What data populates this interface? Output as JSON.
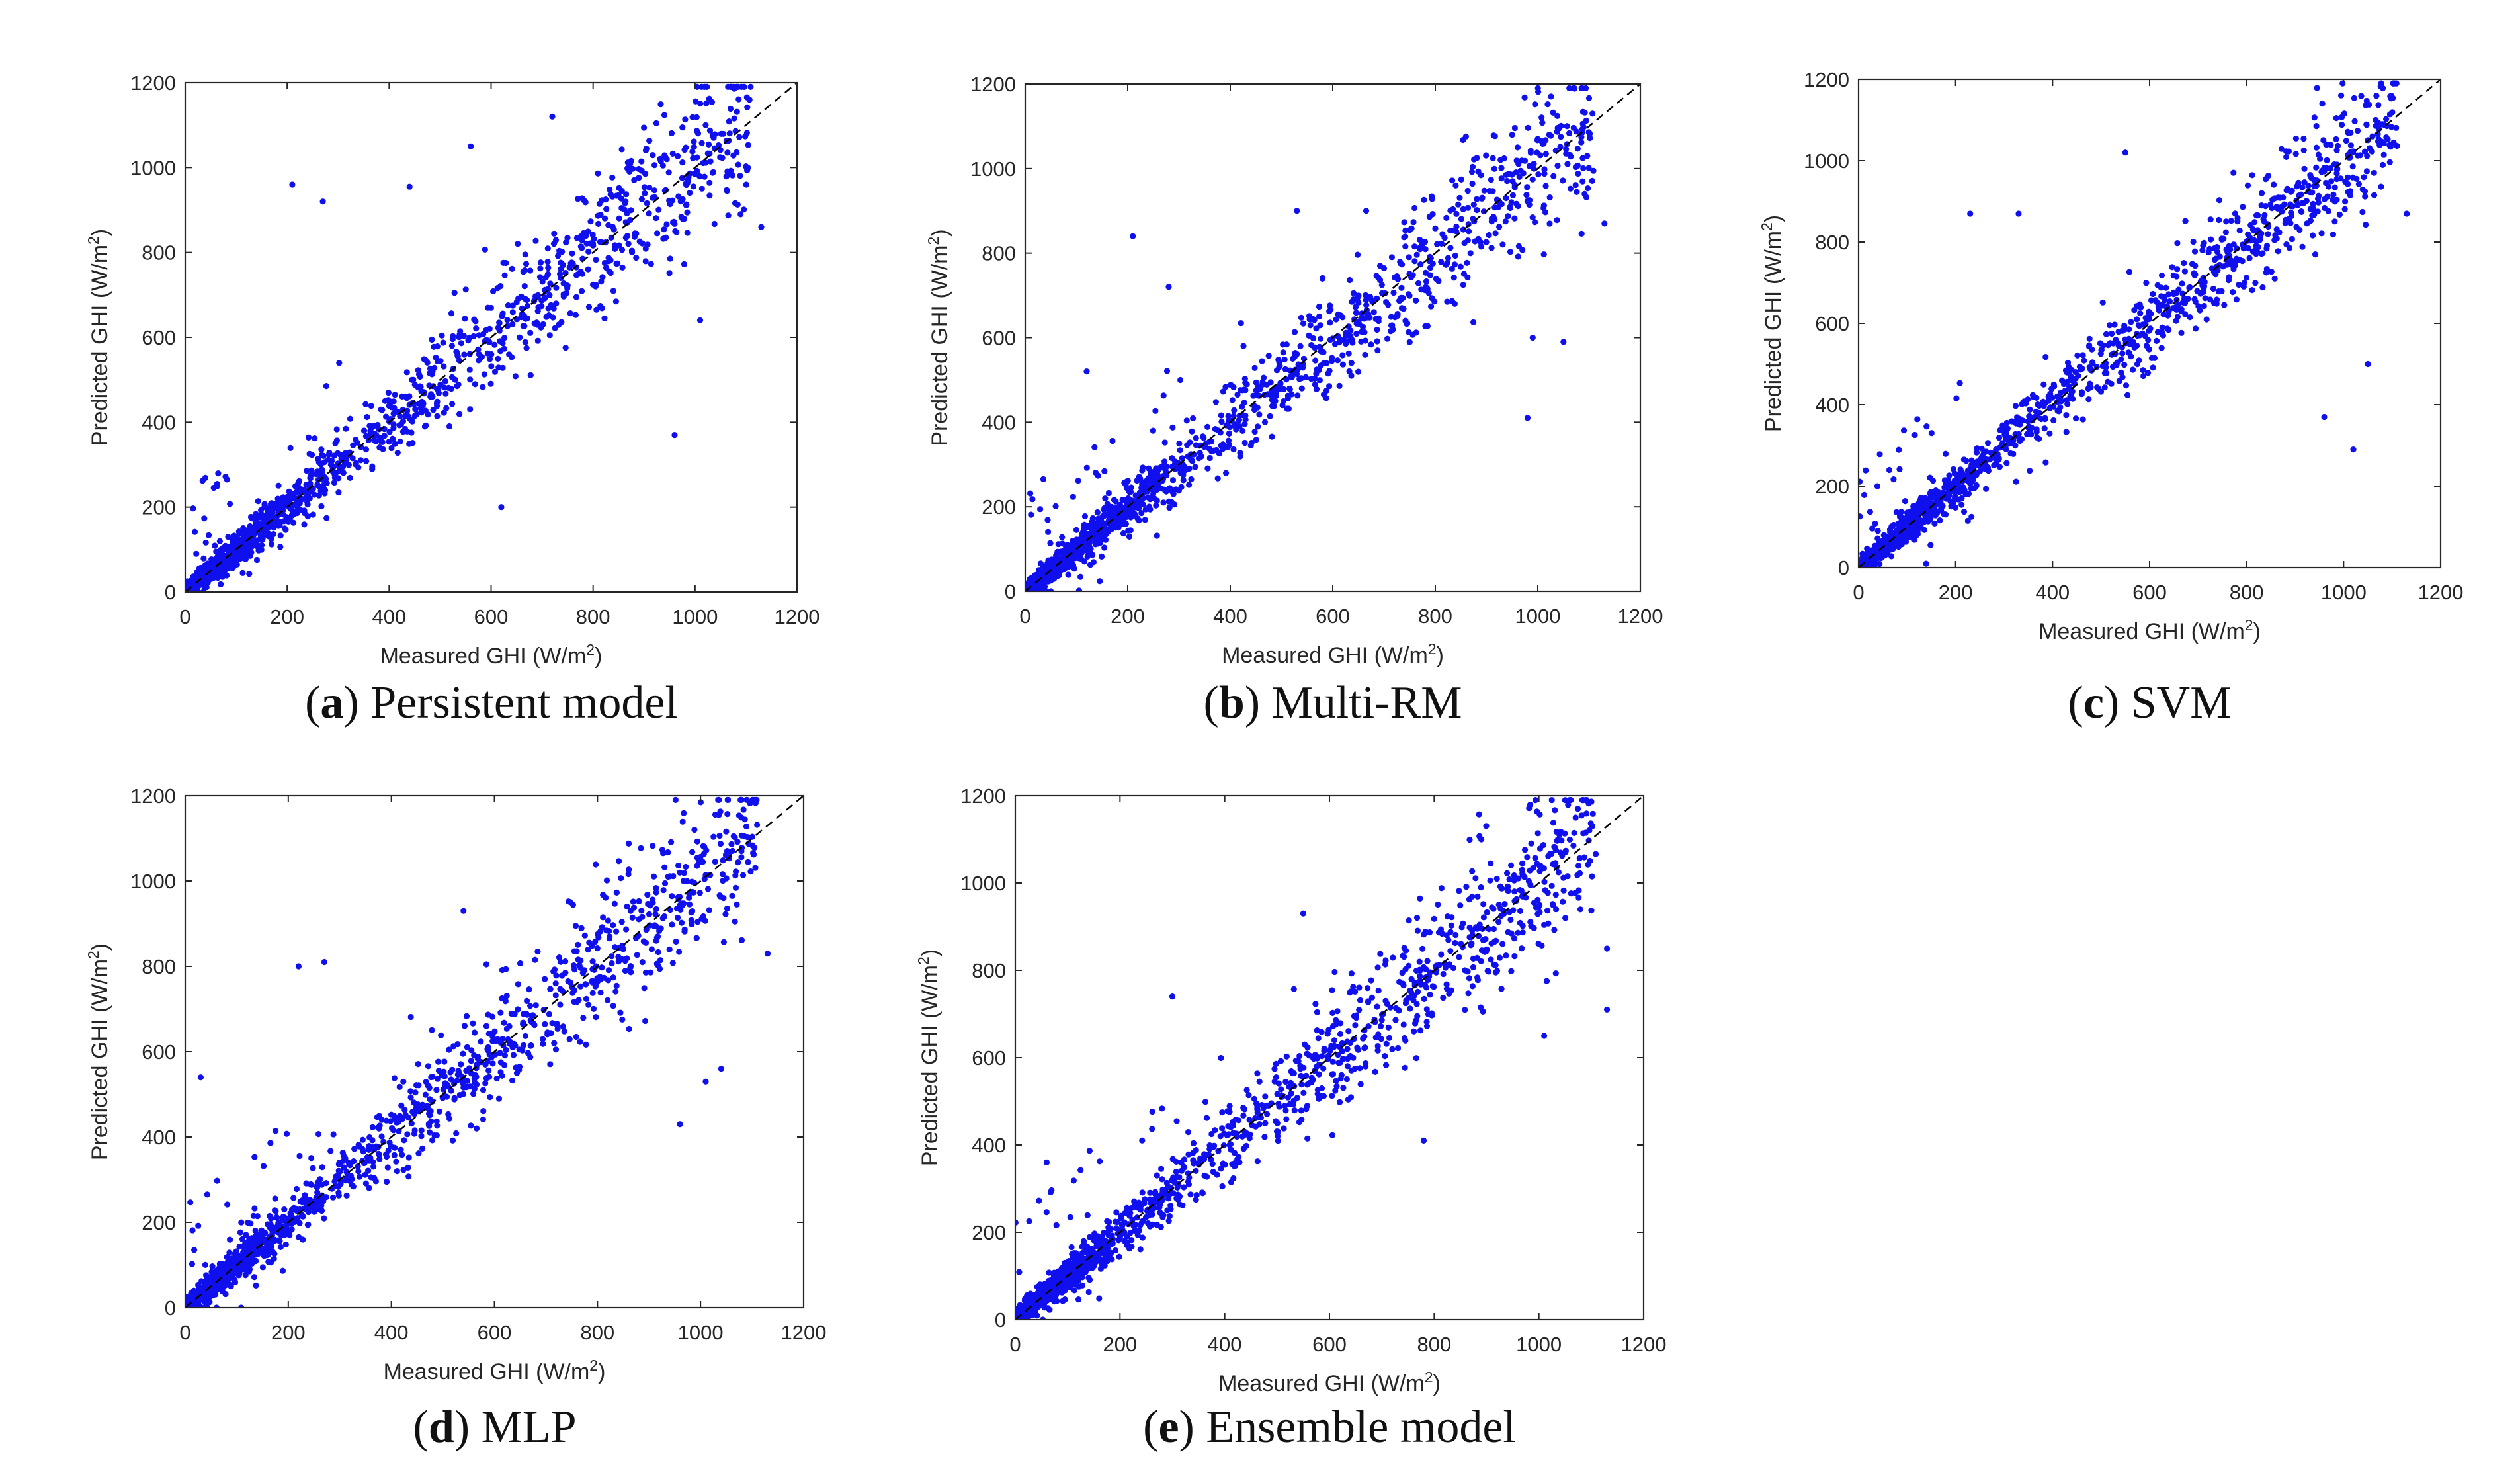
{
  "chart_data": [
    {
      "type": "scatter",
      "panel_letter": "a",
      "caption": "Persistent model",
      "title": "",
      "xlabel": "Measured GHI (W/m",
      "ylabel": "Predicted GHI (W/m",
      "unit_superscript": "2",
      "label_close": ")",
      "xlim": [
        0,
        1200
      ],
      "ylim": [
        0,
        1200
      ],
      "xticks": [
        "0",
        "200",
        "400",
        "600",
        "800",
        "1000",
        "1200"
      ],
      "yticks": [
        "0",
        "200",
        "400",
        "600",
        "800",
        "1000",
        "1200"
      ],
      "reference_line": "y = x (dashed)",
      "marker_color": "#1010ee",
      "spread": 0.16,
      "density_peak": 120,
      "points_shown": 1400,
      "highlight_outliers": [
        [
          210,
          960
        ],
        [
          270,
          920
        ],
        [
          560,
          1050
        ],
        [
          720,
          1120
        ],
        [
          960,
          370
        ],
        [
          1010,
          640
        ],
        [
          1130,
          860
        ],
        [
          440,
          955
        ],
        [
          620,
          200
        ]
      ]
    },
    {
      "type": "scatter",
      "panel_letter": "b",
      "caption": "Multi-RM",
      "title": "",
      "xlabel": "Measured GHI (W/m",
      "ylabel": "Predicted GHI (W/m",
      "unit_superscript": "2",
      "label_close": ")",
      "xlim": [
        0,
        1200
      ],
      "ylim": [
        0,
        1200
      ],
      "xticks": [
        "0",
        "200",
        "400",
        "600",
        "800",
        "1000",
        "1200"
      ],
      "yticks": [
        "0",
        "200",
        "400",
        "600",
        "800",
        "1000",
        "1200"
      ],
      "reference_line": "y = x (dashed)",
      "marker_color": "#1010ee",
      "spread": 0.15,
      "density_peak": 150,
      "points_shown": 1400,
      "highlight_outliers": [
        [
          210,
          840
        ],
        [
          280,
          720
        ],
        [
          530,
          900
        ],
        [
          980,
          410
        ],
        [
          1050,
          590
        ],
        [
          1130,
          870
        ],
        [
          120,
          520
        ],
        [
          990,
          600
        ]
      ]
    },
    {
      "type": "scatter",
      "panel_letter": "c",
      "caption": "SVM",
      "title": "",
      "xlabel": "Measured GHI (W/m",
      "ylabel": "Predicted GHI (W/m",
      "unit_superscript": "2",
      "label_close": ")",
      "xlim": [
        0,
        1200
      ],
      "ylim": [
        0,
        1200
      ],
      "xticks": [
        "0",
        "200",
        "400",
        "600",
        "800",
        "1000",
        "1200"
      ],
      "yticks": [
        "0",
        "200",
        "400",
        "600",
        "800",
        "1000",
        "1200"
      ],
      "reference_line": "y = x (dashed)",
      "marker_color": "#1010ee",
      "spread": 0.13,
      "density_peak": 110,
      "points_shown": 1400,
      "highlight_outliers": [
        [
          550,
          1020
        ],
        [
          230,
          870
        ],
        [
          960,
          370
        ],
        [
          1020,
          290
        ],
        [
          1050,
          500
        ],
        [
          1130,
          870
        ],
        [
          330,
          870
        ]
      ]
    },
    {
      "type": "scatter",
      "panel_letter": "d",
      "caption": "MLP",
      "title": "",
      "xlabel": "Measured GHI (W/m",
      "ylabel": "Predicted GHI (W/m",
      "unit_superscript": "2",
      "label_close": ")",
      "xlim": [
        0,
        1200
      ],
      "ylim": [
        0,
        1200
      ],
      "xticks": [
        "0",
        "200",
        "400",
        "600",
        "800",
        "1000",
        "1200"
      ],
      "yticks": [
        "0",
        "200",
        "400",
        "600",
        "800",
        "1000",
        "1200"
      ],
      "reference_line": "y = x (dashed)",
      "marker_color": "#1010ee",
      "spread": 0.15,
      "density_peak": 120,
      "points_shown": 1400,
      "highlight_outliers": [
        [
          220,
          800
        ],
        [
          270,
          810
        ],
        [
          540,
          930
        ],
        [
          960,
          430
        ],
        [
          1010,
          530
        ],
        [
          1130,
          830
        ],
        [
          30,
          540
        ],
        [
          1040,
          560
        ]
      ]
    },
    {
      "type": "scatter",
      "panel_letter": "e",
      "caption": "Ensemble model",
      "title": "",
      "xlabel": "Measured GHI (W/m",
      "ylabel": "Predicted GHI (W/m",
      "unit_superscript": "2",
      "label_close": ")",
      "xlim": [
        0,
        1200
      ],
      "ylim": [
        0,
        1200
      ],
      "xticks": [
        "0",
        "200",
        "400",
        "600",
        "800",
        "1000",
        "1200"
      ],
      "yticks": [
        "0",
        "200",
        "400",
        "600",
        "800",
        "1000",
        "1200"
      ],
      "reference_line": "y = x (dashed)",
      "marker_color": "#1010ee",
      "spread": 0.15,
      "density_peak": 110,
      "points_shown": 1400,
      "highlight_outliers": [
        [
          550,
          930
        ],
        [
          890,
          1100
        ],
        [
          1130,
          850
        ],
        [
          1130,
          710
        ],
        [
          1010,
          650
        ],
        [
          780,
          410
        ],
        [
          300,
          740
        ],
        [
          60,
          360
        ]
      ]
    }
  ]
}
